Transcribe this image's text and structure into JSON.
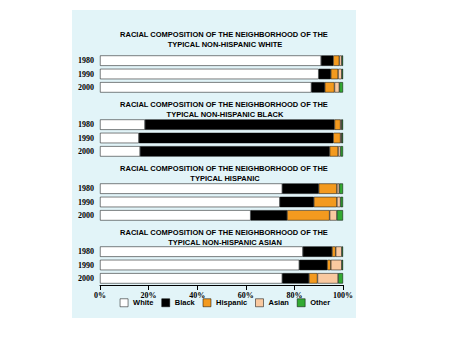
{
  "chart_data": [
    {
      "type": "bar",
      "title": "RACIAL COMPOSITION OF THE NEIGHBORHOOD OF THE TYPICAL NON-HISPANIC WHITE",
      "categories": [
        "1980",
        "1990",
        "2000"
      ],
      "orientation": "horizontal",
      "stacked": true,
      "xlim": [
        0,
        100
      ],
      "tick_labels": "y",
      "grid": false,
      "series": [
        {
          "name": "White",
          "color": "#ffffff",
          "values": [
            91,
            90,
            87
          ]
        },
        {
          "name": "Black",
          "color": "#000000",
          "values": [
            5,
            5,
            5.5
          ]
        },
        {
          "name": "Hispanic",
          "color": "#f39a1f",
          "values": [
            2.5,
            3,
            4
          ]
        },
        {
          "name": "Asian",
          "color": "#f9c9a0",
          "values": [
            1,
            1.5,
            2
          ]
        },
        {
          "name": "Other",
          "color": "#33aa33",
          "values": [
            0.5,
            0.5,
            1.5
          ]
        }
      ]
    },
    {
      "type": "bar",
      "title": "RACIAL COMPOSITION OF THE NEIGHBORHOOD OF THE TYPICAL NON-HISPANIC BLACK",
      "categories": [
        "1980",
        "1990",
        "2000"
      ],
      "orientation": "horizontal",
      "stacked": true,
      "xlim": [
        0,
        100
      ],
      "tick_labels": "y",
      "grid": false,
      "series": [
        {
          "name": "White",
          "color": "#ffffff",
          "values": [
            18.5,
            16,
            16.5
          ]
        },
        {
          "name": "Black",
          "color": "#000000",
          "values": [
            78,
            80,
            78
          ]
        },
        {
          "name": "Hispanic",
          "color": "#f39a1f",
          "values": [
            2.5,
            3,
            3.5
          ]
        },
        {
          "name": "Asian",
          "color": "#f9c9a0",
          "values": [
            0.5,
            0.5,
            1
          ]
        },
        {
          "name": "Other",
          "color": "#33aa33",
          "values": [
            0.5,
            0.5,
            1
          ]
        }
      ]
    },
    {
      "type": "bar",
      "title": "RACIAL COMPOSITION OF THE NEIGHBORHOOD OF THE TYPICAL HISPANIC",
      "categories": [
        "1980",
        "1990",
        "2000"
      ],
      "orientation": "horizontal",
      "stacked": true,
      "xlim": [
        0,
        100
      ],
      "tick_labels": "y",
      "grid": false,
      "series": [
        {
          "name": "White",
          "color": "#ffffff",
          "values": [
            75,
            74,
            62
          ]
        },
        {
          "name": "Black",
          "color": "#000000",
          "values": [
            15,
            14,
            15
          ]
        },
        {
          "name": "Hispanic",
          "color": "#f39a1f",
          "values": [
            7.5,
            9.5,
            17.5
          ]
        },
        {
          "name": "Asian",
          "color": "#f9c9a0",
          "values": [
            1,
            1.5,
            3
          ]
        },
        {
          "name": "Other",
          "color": "#33aa33",
          "values": [
            1.5,
            1,
            2.5
          ]
        }
      ]
    },
    {
      "type": "bar",
      "title": "RACIAL COMPOSITION OF THE NEIGHBORHOOD OF THE TYPICAL NON-HISPANIC ASIAN",
      "categories": [
        "1980",
        "1990",
        "2000"
      ],
      "orientation": "horizontal",
      "stacked": true,
      "xlim": [
        0,
        100
      ],
      "xticks": [
        {
          "value": 0,
          "label": "0%"
        },
        {
          "value": 20,
          "label": "20%"
        },
        {
          "value": 40,
          "label": "40%"
        },
        {
          "value": 60,
          "label": "60%"
        },
        {
          "value": 80,
          "label": "80%"
        },
        {
          "value": 100,
          "label": "100%"
        }
      ],
      "grid": false,
      "legend": "bottom",
      "series": [
        {
          "name": "White",
          "color": "#ffffff",
          "values": [
            83.5,
            82,
            75
          ]
        },
        {
          "name": "Black",
          "color": "#000000",
          "values": [
            12,
            11.5,
            11
          ]
        },
        {
          "name": "Hispanic",
          "color": "#f39a1f",
          "values": [
            1.5,
            1.5,
            3.5
          ]
        },
        {
          "name": "Asian",
          "color": "#f9c9a0",
          "values": [
            2.5,
            4.5,
            8.5
          ]
        },
        {
          "name": "Other",
          "color": "#33aa33",
          "values": [
            0.5,
            0.5,
            2
          ]
        }
      ]
    }
  ]
}
